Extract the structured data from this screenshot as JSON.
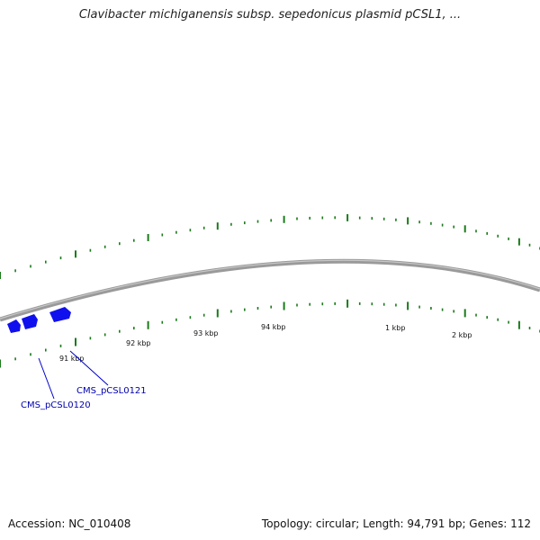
{
  "title": "Clavibacter michiganensis subsp. sepedonicus plasmid pCSL1, ...",
  "footer": {
    "accession": "Accession: NC_010408",
    "summary": "Topology: circular; Length: 94,791 bp; Genes: 112"
  },
  "colors": {
    "backbone": "#8c8c8c",
    "ticks": "#1a7a1a",
    "gene": "#1010ee",
    "gene_label": "#0000aa"
  },
  "tick_labels": [
    "91 kbp",
    "92 kbp",
    "93 kbp",
    "94 kbp",
    "1 kbp",
    "2 kbp"
  ],
  "genes": [
    {
      "label": "CMS_pCSL0120"
    },
    {
      "label": "CMS_pCSL0121"
    }
  ]
}
